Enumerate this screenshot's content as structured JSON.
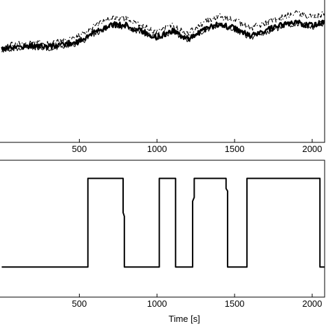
{
  "chart_data": [
    {
      "type": "line",
      "title": "",
      "xlabel": "",
      "ylabel": "",
      "xlim": [
        -20,
        2080
      ],
      "ylim": [
        0,
        1
      ],
      "x_ticks": [
        500,
        1000,
        1500,
        2000
      ],
      "x_tick_labels": [
        "500",
        "1000",
        "1500",
        "2000"
      ],
      "grid": false,
      "series": [
        {
          "style": "thick-solid",
          "color": "#000000",
          "x": [
            0,
            100,
            200,
            300,
            400,
            500,
            600,
            700,
            800,
            900,
            1000,
            1100,
            1200,
            1300,
            1400,
            1500,
            1600,
            1700,
            1800,
            1900,
            2000,
            2080
          ],
          "y": [
            0.67,
            0.68,
            0.69,
            0.68,
            0.7,
            0.72,
            0.79,
            0.85,
            0.84,
            0.8,
            0.75,
            0.8,
            0.74,
            0.81,
            0.85,
            0.82,
            0.76,
            0.8,
            0.84,
            0.86,
            0.84,
            0.87
          ]
        },
        {
          "style": "thin-solid",
          "color": "#000000",
          "x": [
            0,
            100,
            200,
            300,
            400,
            500,
            600,
            700,
            800,
            900,
            1000,
            1100,
            1200,
            1300,
            1400,
            1500,
            1600,
            1700,
            1800,
            1900,
            2000,
            2080
          ],
          "y": [
            0.66,
            0.67,
            0.68,
            0.67,
            0.69,
            0.71,
            0.78,
            0.84,
            0.83,
            0.79,
            0.74,
            0.79,
            0.73,
            0.8,
            0.84,
            0.81,
            0.75,
            0.79,
            0.83,
            0.85,
            0.83,
            0.86
          ]
        },
        {
          "style": "dash-dot",
          "color": "#000000",
          "x": [
            0,
            100,
            200,
            300,
            400,
            500,
            600,
            700,
            800,
            900,
            1000,
            1100,
            1200,
            1300,
            1400,
            1500,
            1600,
            1700,
            1800,
            1900,
            2000,
            2080
          ],
          "y": [
            0.68,
            0.7,
            0.71,
            0.7,
            0.73,
            0.76,
            0.84,
            0.9,
            0.89,
            0.84,
            0.79,
            0.84,
            0.78,
            0.86,
            0.91,
            0.88,
            0.82,
            0.86,
            0.9,
            0.93,
            0.9,
            0.93
          ]
        }
      ]
    },
    {
      "type": "line",
      "title": "",
      "xlabel": "Time [s]",
      "ylabel": "",
      "xlim": [
        -20,
        2080
      ],
      "ylim": [
        0,
        1
      ],
      "x_ticks": [
        500,
        1000,
        1500,
        2000
      ],
      "x_tick_labels": [
        "500",
        "1000",
        "1500",
        "2000"
      ],
      "grid": false,
      "series": [
        {
          "style": "thick-solid",
          "color": "#000000",
          "x": [
            0,
            555,
            555,
            782,
            782,
            790,
            790,
            1015,
            1015,
            1120,
            1120,
            1230,
            1230,
            1240,
            1240,
            1445,
            1445,
            1455,
            1455,
            1580,
            1580,
            2050,
            2050,
            2080
          ],
          "y": [
            0.2,
            0.2,
            0.9,
            0.9,
            0.63,
            0.6,
            0.2,
            0.2,
            0.9,
            0.9,
            0.2,
            0.2,
            0.72,
            0.75,
            0.9,
            0.9,
            0.82,
            0.8,
            0.2,
            0.2,
            0.9,
            0.9,
            0.2,
            0.2
          ]
        }
      ]
    }
  ]
}
